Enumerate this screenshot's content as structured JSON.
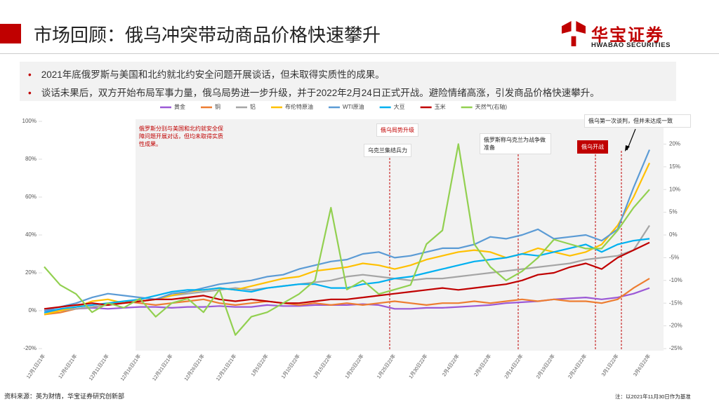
{
  "title": "市场回顾：俄乌冲突带动商品价格快速攀升",
  "logo": {
    "name": "华宝证券",
    "subtitle": "HWABAO SECURITIES"
  },
  "bullets": [
    "2021年底俄罗斯与美国和北约就北约安全问题开展谈话，但未取得实质性的成果。",
    "谈话未果后，双方开始布局军事力量，俄乌局势进一步升级，并于2022年2月24日正式开战。避险情绪高涨，引发商品价格快速攀升。"
  ],
  "source": "资料来源：英为财情，华宝证券研究创新部",
  "note": "注：以2021年11月30日作为基准",
  "chart_data": {
    "type": "line",
    "annotations": [
      "俄罗斯分别与美国和北约就安全保障问题开展对话，但均未取得实质性成果。",
      "俄乌局势升级",
      "乌克兰集结兵力",
      "俄罗斯称乌克兰为战争做准备",
      "俄乌开战",
      "俄乌第一次谈判，但并未达成一致"
    ],
    "categories": [
      "12月1日21年",
      null,
      "12月6日21年",
      null,
      "12月11日21年",
      null,
      "12月16日21年",
      null,
      "12月21日21年",
      null,
      "12月26日21年",
      null,
      "12月31日21年",
      null,
      "1月5日22年",
      null,
      "1月10日22年",
      null,
      "1月15日22年",
      null,
      "1月20日22年",
      null,
      "1月25日22年",
      null,
      "1月30日22年",
      null,
      "2月4日22年",
      null,
      "2月9日22年",
      null,
      "2月14日22年",
      null,
      "2月19日22年",
      null,
      "2月24日22年",
      null,
      "3月1日22年",
      null,
      "3月6日22年"
    ],
    "ylim": [
      -20,
      100
    ],
    "yticks": [
      {
        "value": -20,
        "label": "-20%"
      },
      {
        "value": 0,
        "label": "0%"
      },
      {
        "value": 20,
        "label": "20%"
      },
      {
        "value": 40,
        "label": "40%"
      },
      {
        "value": 60,
        "label": "60%"
      },
      {
        "value": 80,
        "label": "80%"
      },
      {
        "value": 100,
        "label": "100%"
      }
    ],
    "y2lim": [
      -25,
      25
    ],
    "y2ticks": [
      {
        "value": -25,
        "label": "-25%"
      },
      {
        "value": -20,
        "label": "-20%"
      },
      {
        "value": -15,
        "label": "-15%"
      },
      {
        "value": -10,
        "label": "-10%"
      },
      {
        "value": -5,
        "label": "-5%"
      },
      {
        "value": 0,
        "label": "0%"
      },
      {
        "value": 5,
        "label": "5%"
      },
      {
        "value": 10,
        "label": "10%"
      },
      {
        "value": 15,
        "label": "15%"
      },
      {
        "value": 20,
        "label": "20%"
      },
      {
        "value": 25,
        "label": "25%"
      }
    ],
    "series": [
      {
        "name": "黄金",
        "color": "#9b59d6",
        "values": [
          0,
          0.5,
          1,
          1.5,
          1,
          1.5,
          2,
          2,
          1.5,
          2,
          2,
          2.5,
          2,
          2,
          3,
          2.5,
          2.5,
          3,
          3,
          3,
          3.5,
          3,
          1,
          1,
          1.5,
          1.5,
          2,
          2.5,
          3,
          4,
          4.5,
          5,
          6,
          6.5,
          7,
          6,
          7,
          9,
          12
        ]
      },
      {
        "name": "铜",
        "color": "#ed7d31",
        "values": [
          -2,
          -1,
          1,
          2,
          3,
          5,
          4,
          3,
          4,
          5,
          6,
          4,
          3,
          4,
          5,
          4,
          3,
          4,
          3,
          4,
          3,
          4,
          5,
          4,
          3,
          4,
          4,
          5,
          4,
          5,
          6,
          5,
          6,
          5,
          5,
          4,
          6,
          12,
          17
        ]
      },
      {
        "name": "铝",
        "color": "#a5a5a5",
        "values": [
          -1,
          0,
          1,
          2,
          3,
          4,
          5,
          6,
          8,
          9,
          10,
          11,
          12,
          11,
          12,
          13,
          14,
          15,
          16,
          18,
          19,
          18,
          17,
          16,
          17,
          17,
          18,
          19,
          20,
          21,
          22,
          23,
          24,
          25,
          27,
          28,
          29,
          32,
          45
        ]
      },
      {
        "name": "布伦特原油",
        "color": "#ffc000",
        "values": [
          -2,
          0,
          2,
          5,
          6,
          4,
          5,
          6,
          8,
          10,
          11,
          12,
          11,
          13,
          15,
          17,
          18,
          21,
          22,
          23,
          25,
          24,
          22,
          24,
          27,
          29,
          31,
          32,
          31,
          28,
          30,
          33,
          31,
          29,
          31,
          35,
          45,
          60,
          78
        ]
      },
      {
        "name": "WTI原油",
        "color": "#5b9bd5",
        "values": [
          0,
          2,
          4,
          7,
          9,
          8,
          7,
          6,
          9,
          10,
          12,
          14,
          15,
          16,
          18,
          19,
          22,
          24,
          26,
          27,
          30,
          31,
          28,
          29,
          31,
          33,
          33,
          35,
          39,
          38,
          40,
          43,
          38,
          39,
          40,
          37,
          43,
          65,
          85
        ]
      },
      {
        "name": "大豆",
        "color": "#00b0f0",
        "values": [
          -1,
          1,
          2,
          3,
          4,
          5,
          6,
          8,
          10,
          11,
          11,
          12,
          11,
          10,
          12,
          13,
          14,
          14,
          12,
          12,
          14,
          15,
          17,
          18,
          20,
          22,
          24,
          26,
          27,
          28,
          30,
          29,
          31,
          33,
          35,
          31,
          35,
          37,
          38
        ]
      },
      {
        "name": "玉米",
        "color": "#c00000",
        "values": [
          1,
          2,
          3,
          4,
          3,
          4,
          5,
          6,
          6,
          7,
          8,
          6,
          5,
          6,
          5,
          4,
          4,
          5,
          6,
          6,
          7,
          8,
          9,
          10,
          11,
          12,
          11,
          12,
          13,
          14,
          16,
          19,
          20,
          23,
          25,
          22,
          28,
          32,
          36
        ]
      },
      {
        "name": "天然气(右轴)",
        "color": "#92d050",
        "axis": "y2",
        "values": [
          -7,
          -11,
          -13,
          -17,
          -15,
          -16,
          -14,
          -18,
          -15,
          -14,
          -17,
          -12,
          -22,
          -18,
          -17,
          -15,
          -13,
          -10,
          6,
          -12,
          -10,
          -13,
          -12,
          -11,
          -2,
          1,
          20,
          -2,
          -7,
          -10,
          -8,
          -5,
          -1,
          -2,
          -3,
          -3,
          1,
          6,
          10
        ]
      }
    ]
  }
}
